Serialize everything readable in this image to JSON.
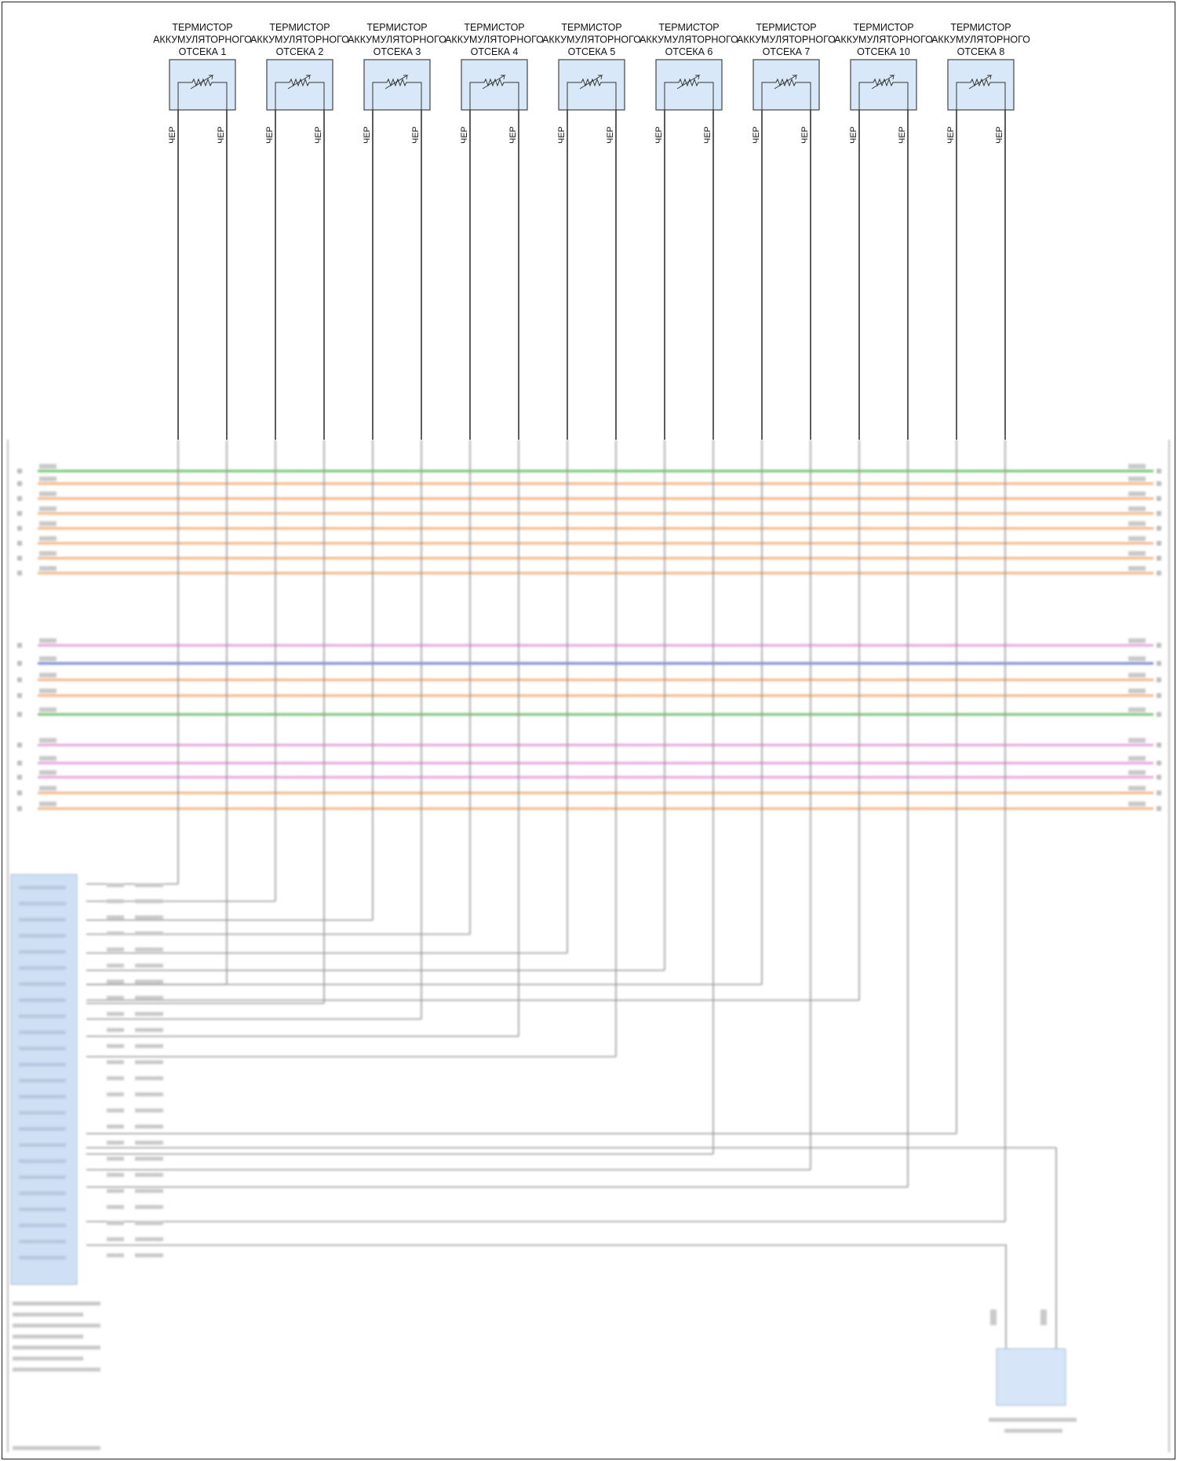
{
  "thermistors": [
    {
      "line1": "ТЕРМИСТОР",
      "line2": "АККУМУЛЯТОРНОГО",
      "line3": "ОТСЕКА 1",
      "wire_left": "ЧЕР",
      "wire_right": "ЧЕР"
    },
    {
      "line1": "ТЕРМИСТОР",
      "line2": "АККУМУЛЯТОРНОГО",
      "line3": "ОТСЕКА 2",
      "wire_left": "ЧЕР",
      "wire_right": "ЧЕР"
    },
    {
      "line1": "ТЕРМИСТОР",
      "line2": "АККУМУЛЯТОРНОГО",
      "line3": "ОТСЕКА 3",
      "wire_left": "ЧЕР",
      "wire_right": "ЧЕР"
    },
    {
      "line1": "ТЕРМИСТОР",
      "line2": "АККУМУЛЯТОРНОГО",
      "line3": "ОТСЕКА 4",
      "wire_left": "ЧЕР",
      "wire_right": "ЧЕР"
    },
    {
      "line1": "ТЕРМИСТОР",
      "line2": "АККУМУЛЯТОРНОГО",
      "line3": "ОТСЕКА 5",
      "wire_left": "ЧЕР",
      "wire_right": "ЧЕР"
    },
    {
      "line1": "ТЕРМИСТОР",
      "line2": "АККУМУЛЯТОРНОГО",
      "line3": "ОТСЕКА 6",
      "wire_left": "ЧЕР",
      "wire_right": "ЧЕР"
    },
    {
      "line1": "ТЕРМИСТОР",
      "line2": "АККУМУЛЯТОРНОГО",
      "line3": "ОТСЕКА 7",
      "wire_left": "ЧЕР",
      "wire_right": "ЧЕР"
    },
    {
      "line1": "ТЕРМИСТОР",
      "line2": "АККУМУЛЯТОРНОГО",
      "line3": "ОТСЕКА 10",
      "wire_left": "ЧЕР",
      "wire_right": "ЧЕР"
    },
    {
      "line1": "ТЕРМИСТОР",
      "line2": "АККУМУЛЯТОРНОГО",
      "line3": "ОТСЕКА 8",
      "wire_left": "ЧЕР",
      "wire_right": "ЧЕР"
    }
  ],
  "colors": {
    "frame": "#222222",
    "wire": "#333333",
    "thermistor_fill": "#d8e8f8",
    "thermistor_stroke": "#444444",
    "band_green": "#7cc87c",
    "band_orange": "#f5b98a",
    "band_pink": "#e7a9e0",
    "band_blue": "#7e8fdc",
    "module_fill": "#cfe0f5",
    "faded_wire": "#9a9a9a"
  }
}
